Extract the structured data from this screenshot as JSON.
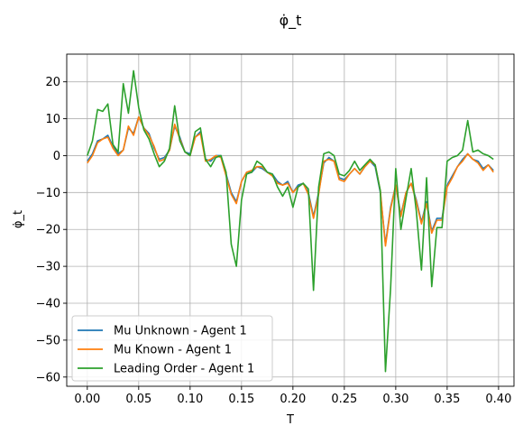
{
  "chart_data": {
    "type": "line",
    "title": "φ̇_t",
    "xlabel": "T",
    "ylabel": "φ̇_t",
    "xlim": [
      -0.02,
      0.415
    ],
    "ylim": [
      -62.5,
      27.5
    ],
    "xticks": [
      0.0,
      0.05,
      0.1,
      0.15,
      0.2,
      0.25,
      0.3,
      0.35,
      0.4
    ],
    "xtick_labels": [
      "0.00",
      "0.05",
      "0.10",
      "0.15",
      "0.20",
      "0.25",
      "0.30",
      "0.35",
      "0.40"
    ],
    "yticks": [
      -60,
      -50,
      -40,
      -30,
      -20,
      -10,
      0,
      10,
      20
    ],
    "ytick_labels": [
      "−60",
      "−50",
      "−40",
      "−30",
      "−20",
      "−10",
      "0",
      "10",
      "20"
    ],
    "grid": true,
    "legend_position": "lower-left",
    "x": [
      0.0,
      0.005,
      0.01,
      0.015,
      0.02,
      0.025,
      0.03,
      0.035,
      0.04,
      0.045,
      0.05,
      0.055,
      0.06,
      0.065,
      0.07,
      0.075,
      0.08,
      0.085,
      0.09,
      0.095,
      0.1,
      0.105,
      0.11,
      0.115,
      0.12,
      0.125,
      0.13,
      0.135,
      0.14,
      0.145,
      0.15,
      0.155,
      0.16,
      0.165,
      0.17,
      0.175,
      0.18,
      0.185,
      0.19,
      0.195,
      0.2,
      0.205,
      0.21,
      0.215,
      0.22,
      0.225,
      0.23,
      0.235,
      0.24,
      0.245,
      0.25,
      0.255,
      0.26,
      0.265,
      0.27,
      0.275,
      0.28,
      0.285,
      0.29,
      0.295,
      0.3,
      0.305,
      0.31,
      0.315,
      0.32,
      0.325,
      0.33,
      0.335,
      0.34,
      0.345,
      0.35,
      0.355,
      0.36,
      0.365,
      0.37,
      0.375,
      0.38,
      0.385,
      0.39,
      0.395
    ],
    "series": [
      {
        "name": "Mu Unknown - Agent 1",
        "color": "#1f77b4",
        "values": [
          -1.5,
          0.5,
          4.0,
          4.5,
          5.5,
          2.5,
          0.5,
          1.5,
          7.5,
          6.0,
          10.5,
          7.5,
          6.0,
          2.0,
          -1.0,
          -0.5,
          1.5,
          8.0,
          5.0,
          1.0,
          0.5,
          5.0,
          6.5,
          -1.0,
          -1.5,
          0.0,
          0.0,
          -5.0,
          -10.0,
          -12.5,
          -7.0,
          -4.5,
          -4.5,
          -3.0,
          -3.5,
          -4.5,
          -5.0,
          -7.0,
          -8.0,
          -7.0,
          -10.0,
          -8.0,
          -7.5,
          -10.0,
          -16.5,
          -10.0,
          -2.0,
          -0.5,
          -1.5,
          -6.0,
          -6.5,
          -5.0,
          -3.5,
          -5.0,
          -3.0,
          -1.5,
          -3.0,
          -10.0,
          -24.0,
          -14.0,
          -8.0,
          -16.0,
          -10.0,
          -7.5,
          -12.0,
          -18.0,
          -12.5,
          -20.5,
          -17.0,
          -17.0,
          -8.0,
          -5.5,
          -3.0,
          -1.0,
          0.5,
          -1.0,
          -1.5,
          -3.5,
          -2.5,
          -4.0
        ]
      },
      {
        "name": "Mu Known - Agent 1",
        "color": "#ff7f0e",
        "values": [
          -2.0,
          0.0,
          3.5,
          4.5,
          5.0,
          2.0,
          0.0,
          1.5,
          8.0,
          5.5,
          10.5,
          7.5,
          5.5,
          2.5,
          -1.5,
          -1.0,
          1.5,
          8.5,
          4.5,
          1.0,
          0.0,
          5.0,
          6.0,
          -1.5,
          -1.0,
          0.0,
          -0.5,
          -5.5,
          -10.5,
          -13.0,
          -7.0,
          -4.5,
          -4.0,
          -3.0,
          -3.0,
          -4.5,
          -5.5,
          -7.5,
          -8.0,
          -7.5,
          -10.0,
          -8.5,
          -7.5,
          -10.5,
          -17.0,
          -10.5,
          -1.5,
          -1.0,
          -1.5,
          -6.5,
          -7.0,
          -5.0,
          -3.5,
          -5.0,
          -3.0,
          -1.5,
          -2.5,
          -9.5,
          -24.5,
          -14.5,
          -8.0,
          -16.5,
          -10.0,
          -7.5,
          -12.5,
          -18.5,
          -13.0,
          -21.0,
          -17.5,
          -17.5,
          -8.5,
          -6.0,
          -3.0,
          -1.5,
          0.5,
          -1.0,
          -2.0,
          -4.0,
          -2.5,
          -4.5
        ]
      },
      {
        "name": "Leading Order - Agent 1",
        "color": "#2ca02c",
        "values": [
          0.0,
          4.0,
          12.5,
          12.0,
          14.0,
          3.0,
          1.0,
          19.5,
          11.5,
          23.0,
          13.0,
          7.0,
          4.5,
          0.5,
          -3.0,
          -1.5,
          2.0,
          13.5,
          4.0,
          1.0,
          0.0,
          6.5,
          7.5,
          -1.0,
          -3.0,
          -0.5,
          0.0,
          -4.5,
          -24.0,
          -30.0,
          -12.0,
          -5.0,
          -4.5,
          -1.5,
          -2.5,
          -4.5,
          -5.0,
          -8.5,
          -11.0,
          -8.5,
          -14.0,
          -8.5,
          -7.5,
          -9.0,
          -36.5,
          -8.5,
          0.5,
          1.0,
          0.0,
          -5.0,
          -5.5,
          -4.0,
          -1.5,
          -4.0,
          -2.5,
          -1.0,
          -2.5,
          -9.5,
          -58.5,
          -36.0,
          -3.5,
          -20.0,
          -11.5,
          -3.5,
          -15.0,
          -31.0,
          -6.0,
          -35.5,
          -19.5,
          -19.5,
          -1.5,
          -0.5,
          0.0,
          1.5,
          9.5,
          1.0,
          1.5,
          0.5,
          0.0,
          -1.0
        ]
      }
    ]
  }
}
